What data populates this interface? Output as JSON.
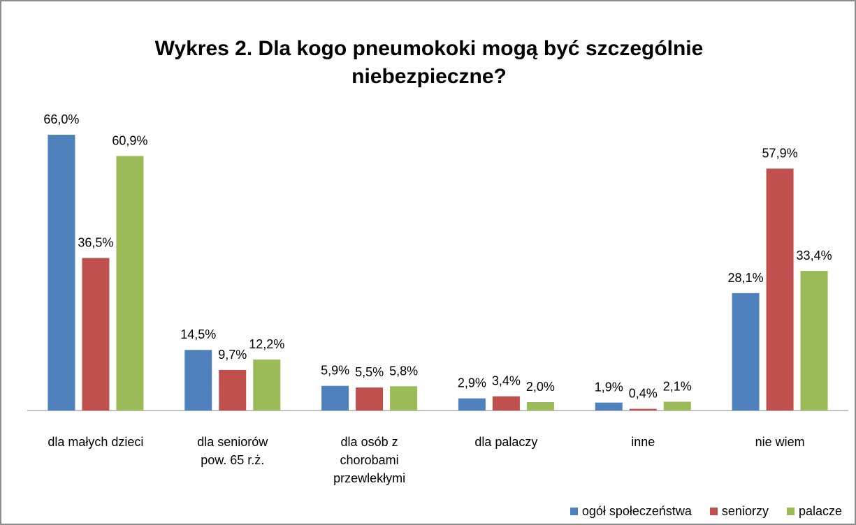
{
  "chart_data": {
    "type": "bar",
    "title": "Wykres 2. Dla kogo pneumokoki mogą być szczególnie niebezpieczne?",
    "categories": [
      "dla małych dzieci",
      "dla seniorów\npow. 65 r.ż.",
      "dla osób z\nchorobami\nprzewlekłymi",
      "dla palaczy",
      "inne",
      "nie wiem"
    ],
    "series": [
      {
        "name": "ogół społeczeństwa",
        "color": "#4f81bd",
        "values": [
          66.0,
          14.5,
          5.9,
          2.9,
          1.9,
          28.1
        ],
        "value_labels": [
          "66,0%",
          "14,5%",
          "5,9%",
          "2,9%",
          "1,9%",
          "28,1%"
        ]
      },
      {
        "name": "seniorzy",
        "color": "#c0504d",
        "values": [
          36.5,
          9.7,
          5.5,
          3.4,
          0.4,
          57.9
        ],
        "value_labels": [
          "36,5%",
          "9,7%",
          "5,5%",
          "3,4%",
          "0,4%",
          "57,9%"
        ]
      },
      {
        "name": "palacze",
        "color": "#9bbb59",
        "values": [
          60.9,
          12.2,
          5.8,
          2.0,
          2.1,
          33.4
        ],
        "value_labels": [
          "60,9%",
          "12,2%",
          "5,8%",
          "2,0%",
          "2,1%",
          "33,4%"
        ]
      }
    ],
    "legend": "bottom-right"
  }
}
